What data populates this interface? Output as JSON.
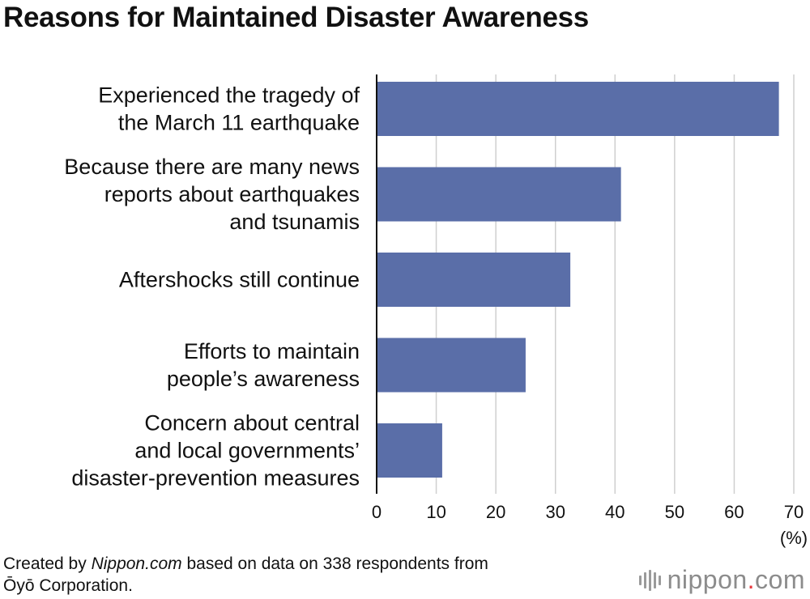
{
  "chart_data": {
    "type": "bar",
    "orientation": "horizontal",
    "title": "Reasons for Maintained Disaster Awareness",
    "categories": [
      [
        "Experienced the tragedy of",
        "the March 11 earthquake"
      ],
      [
        "Because there are many news",
        "reports about earthquakes",
        "and tsunamis"
      ],
      [
        "Aftershocks still continue"
      ],
      [
        "Efforts to maintain",
        "people’s awareness"
      ],
      [
        "Concern about central",
        "and local governments’",
        "disaster-prevention measures"
      ]
    ],
    "values": [
      67.5,
      41,
      32.5,
      25,
      11
    ],
    "xlim": [
      0,
      70
    ],
    "xticks": [
      0,
      10,
      20,
      30,
      40,
      50,
      60,
      70
    ],
    "xunit": "(%)",
    "grid": true,
    "bar_color": "#5a6ea8"
  },
  "footer": {
    "prefix": "Created by ",
    "source_site": "Nippon.com",
    "suffix": " based on data on 338 respondents from",
    "line2": "Ōyō Corporation."
  },
  "logo": {
    "name": "nippon",
    "dot": ".",
    "tld": "com"
  }
}
